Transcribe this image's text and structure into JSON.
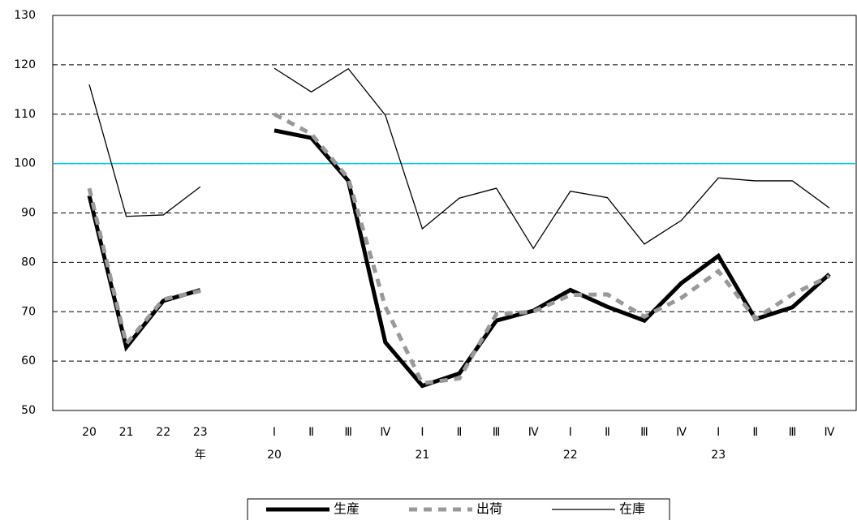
{
  "chart_data": {
    "type": "line",
    "categories": [
      "20",
      "21",
      "22",
      "23",
      null,
      "Ⅰ",
      "Ⅱ",
      "Ⅲ",
      "Ⅳ",
      "Ⅰ",
      "Ⅱ",
      "Ⅲ",
      "Ⅳ",
      "Ⅰ",
      "Ⅱ",
      "Ⅲ",
      "Ⅳ",
      "Ⅰ",
      "Ⅱ",
      "Ⅲ",
      "Ⅳ"
    ],
    "category_groups": [
      null,
      null,
      null,
      "年",
      null,
      "20",
      null,
      null,
      null,
      "21",
      null,
      null,
      null,
      "22",
      null,
      null,
      null,
      "23",
      null,
      null,
      null
    ],
    "series": [
      {
        "name": "生産",
        "color": "#000000",
        "width": 5,
        "dash": false,
        "values": [
          93.5,
          62.8,
          72.2,
          74.4,
          null,
          106.7,
          105.2,
          96.5,
          63.8,
          55.0,
          57.5,
          68.2,
          70.2,
          74.4,
          71.0,
          68.2,
          75.8,
          81.3,
          68.5,
          70.9,
          77.6
        ]
      },
      {
        "name": "出荷",
        "color": "#999999",
        "width": 5,
        "dash": true,
        "values": [
          95.0,
          63.5,
          72.5,
          74.2,
          null,
          110.0,
          106.0,
          97.0,
          71.0,
          55.5,
          56.5,
          69.5,
          70.0,
          73.4,
          73.5,
          69.0,
          72.8,
          78.2,
          68.6,
          73.5,
          77.2
        ]
      },
      {
        "name": "在庫",
        "color": "#000000",
        "width": 1.3,
        "dash": false,
        "values": [
          116.0,
          89.3,
          89.6,
          95.3,
          null,
          119.3,
          114.5,
          119.2,
          109.8,
          86.8,
          93.0,
          95.0,
          82.8,
          94.4,
          93.1,
          83.7,
          88.5,
          97.1,
          96.5,
          96.5,
          91.0
        ]
      }
    ],
    "ylim": [
      50,
      130
    ],
    "yticks": [
      50,
      60,
      70,
      80,
      90,
      100,
      110,
      120,
      130
    ],
    "grid": true,
    "reference_line": 100,
    "reference_color": "#00c8e6",
    "legend": "bottom"
  }
}
